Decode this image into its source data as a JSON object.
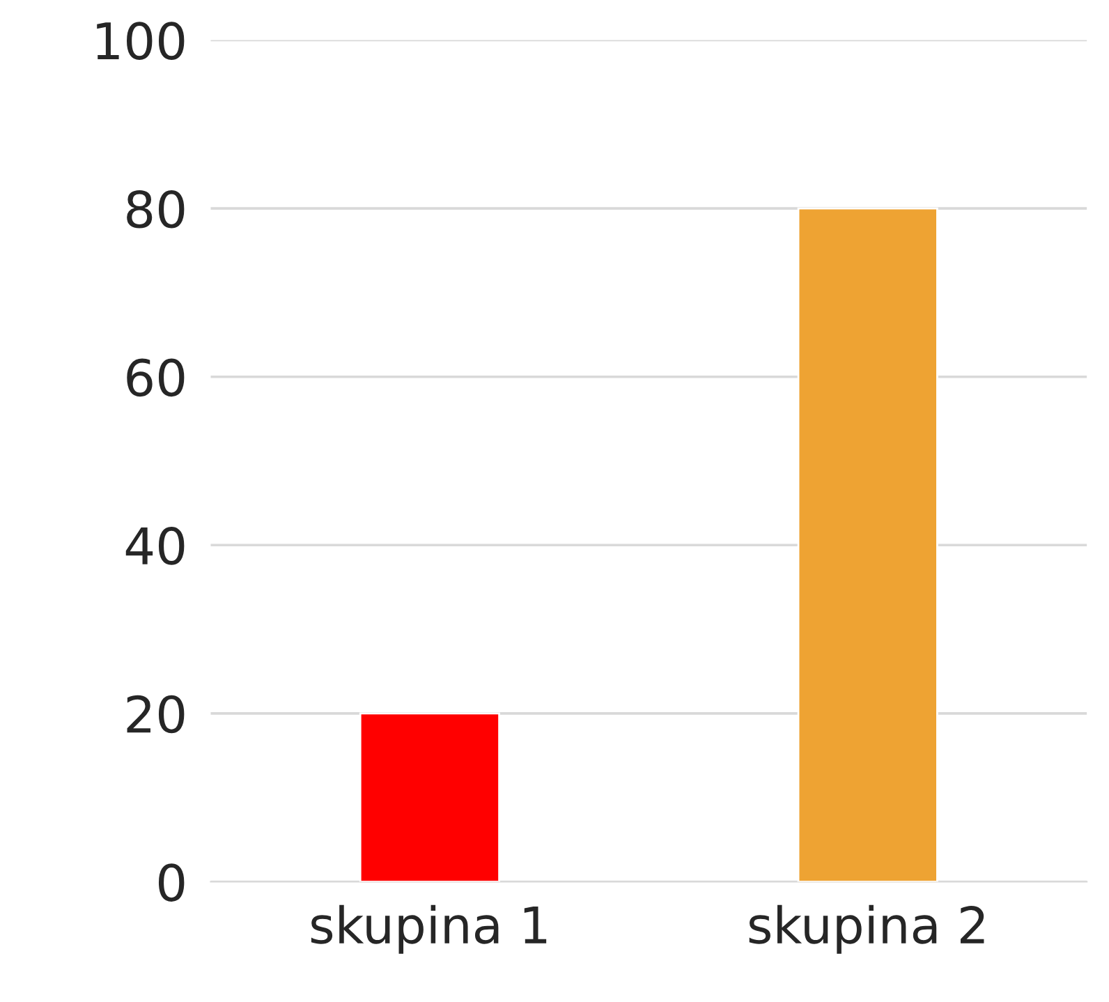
{
  "chart_data": {
    "type": "bar",
    "categories": [
      "skupina 1",
      "skupina 2"
    ],
    "values": [
      20,
      80
    ],
    "colors": [
      "#ff0000",
      "#eea333"
    ],
    "ylim": [
      0,
      100
    ],
    "yticks": [
      0,
      20,
      40,
      60,
      80,
      100
    ],
    "grid": "y",
    "legend": false
  }
}
